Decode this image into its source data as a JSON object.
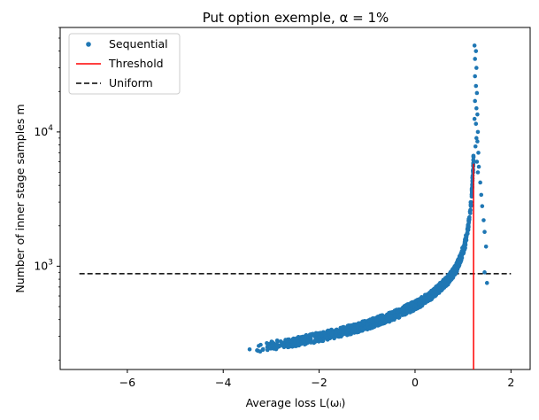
{
  "chart_data": {
    "type": "scatter",
    "title": "Put option exemple, α = 1%",
    "xlabel": "Average loss L(ωᵢ)",
    "ylabel": "Number of inner stage samples m",
    "xlim": [
      -7.4,
      2.4
    ],
    "ylim": [
      170,
      60000
    ],
    "yscale": "log",
    "grid": false,
    "legend_position": "top-left",
    "x_ticks": [
      {
        "value": -6,
        "label": "−6"
      },
      {
        "value": -4,
        "label": "−4"
      },
      {
        "value": -2,
        "label": "−2"
      },
      {
        "value": 0,
        "label": "0"
      },
      {
        "value": 2,
        "label": "2"
      }
    ],
    "y_ticks": [
      {
        "value": 1000,
        "base": "10",
        "exp": "3"
      },
      {
        "value": 10000,
        "base": "10",
        "exp": "4"
      }
    ],
    "series": [
      {
        "name": "Sequential",
        "kind": "points",
        "color": "#1f77b4",
        "curve_points": [
          [
            -3.45,
            240
          ],
          [
            -3.0,
            255
          ],
          [
            -2.5,
            272
          ],
          [
            -2.0,
            296
          ],
          [
            -1.5,
            325
          ],
          [
            -1.0,
            365
          ],
          [
            -0.5,
            420
          ],
          [
            0.0,
            510
          ],
          [
            0.3,
            590
          ],
          [
            0.5,
            680
          ],
          [
            0.7,
            800
          ],
          [
            0.85,
            950
          ],
          [
            0.95,
            1150
          ],
          [
            1.05,
            1500
          ],
          [
            1.12,
            2100
          ],
          [
            1.17,
            3000
          ],
          [
            1.2,
            4500
          ],
          [
            1.22,
            6500
          ]
        ],
        "spread_points": [
          [
            1.24,
            44000
          ],
          [
            1.27,
            40000
          ],
          [
            1.25,
            35000
          ],
          [
            1.28,
            30000
          ],
          [
            1.25,
            26000
          ],
          [
            1.27,
            22000
          ],
          [
            1.29,
            19500
          ],
          [
            1.25,
            17000
          ],
          [
            1.28,
            15000
          ],
          [
            1.3,
            13500
          ],
          [
            1.24,
            12500
          ],
          [
            1.27,
            11500
          ],
          [
            1.31,
            10000
          ],
          [
            1.28,
            9000
          ],
          [
            1.3,
            8500
          ],
          [
            1.26,
            7800
          ],
          [
            1.32,
            7000
          ],
          [
            1.29,
            6000
          ],
          [
            1.33,
            5500
          ],
          [
            1.31,
            5000
          ],
          [
            1.36,
            4200
          ],
          [
            1.38,
            3400
          ],
          [
            1.4,
            2800
          ],
          [
            1.43,
            2200
          ],
          [
            1.45,
            1800
          ],
          [
            1.48,
            1400
          ],
          [
            1.5,
            750
          ],
          [
            1.45,
            900
          ]
        ]
      },
      {
        "name": "Threshold",
        "kind": "vline",
        "color": "#ff0000",
        "x": 1.22,
        "y_range": [
          170,
          5800
        ]
      },
      {
        "name": "Uniform",
        "kind": "hline",
        "color": "#000000",
        "y": 880,
        "x_range": [
          -7,
          2
        ]
      }
    ]
  }
}
